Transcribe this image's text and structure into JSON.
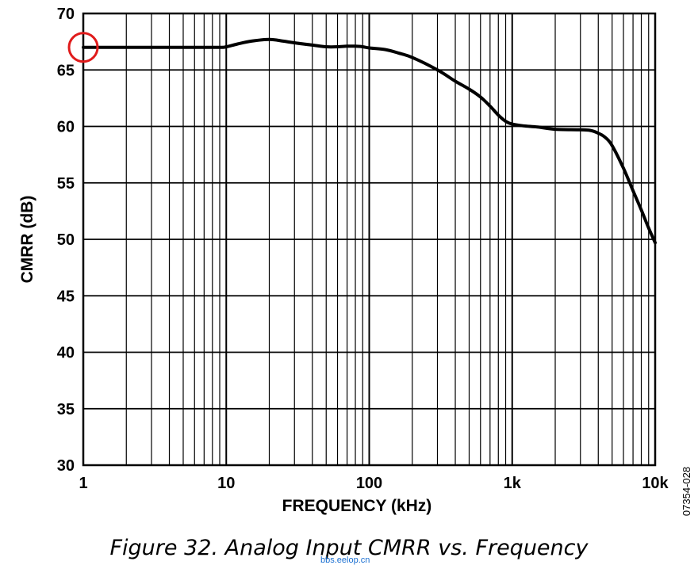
{
  "chart_data": {
    "type": "line",
    "x_scale": "log",
    "xlim": [
      1,
      10000
    ],
    "ylim": [
      30,
      70
    ],
    "x_ticks": [
      {
        "value": 1,
        "label": "1"
      },
      {
        "value": 10,
        "label": "10"
      },
      {
        "value": 100,
        "label": "100"
      },
      {
        "value": 1000,
        "label": "1k"
      },
      {
        "value": 10000,
        "label": "10k"
      }
    ],
    "y_ticks": [
      30,
      35,
      40,
      45,
      50,
      55,
      60,
      65,
      70
    ],
    "xlabel": "FREQUENCY (kHz)",
    "ylabel": "CMRR (dB)",
    "grid": true,
    "series": [
      {
        "x": [
          1,
          2,
          5,
          9,
          10,
          12,
          15,
          20,
          25,
          30,
          40,
          50,
          60,
          70,
          80,
          90,
          100,
          130,
          160,
          200,
          300,
          400,
          500,
          600,
          700,
          800,
          900,
          1000,
          1200,
          1500,
          2000,
          3000,
          3500,
          4000,
          4500,
          5000,
          6000,
          7000,
          8000,
          9000,
          10000
        ],
        "y": [
          67.0,
          67.0,
          67.0,
          67.0,
          67.05,
          67.3,
          67.55,
          67.7,
          67.55,
          67.4,
          67.2,
          67.05,
          67.05,
          67.1,
          67.1,
          67.05,
          66.95,
          66.8,
          66.5,
          66.1,
          65.0,
          64.0,
          63.3,
          62.6,
          61.8,
          61.0,
          60.45,
          60.2,
          60.05,
          59.95,
          59.75,
          59.7,
          59.65,
          59.4,
          59.0,
          58.3,
          56.3,
          54.3,
          52.6,
          51.0,
          49.7
        ]
      }
    ],
    "annotations": [
      {
        "shape": "circle",
        "color": "#e01b1b",
        "x": 1,
        "y": 67.0
      }
    ]
  },
  "side_code": "07354-028",
  "caption": "Figure 32. Analog Input CMRR vs. Frequency",
  "watermark": "bbs.eelop.cn",
  "colors": {
    "line": "#000000",
    "grid": "#000000",
    "marker": "#e01b1b",
    "watermark": "#1a6fd1"
  }
}
